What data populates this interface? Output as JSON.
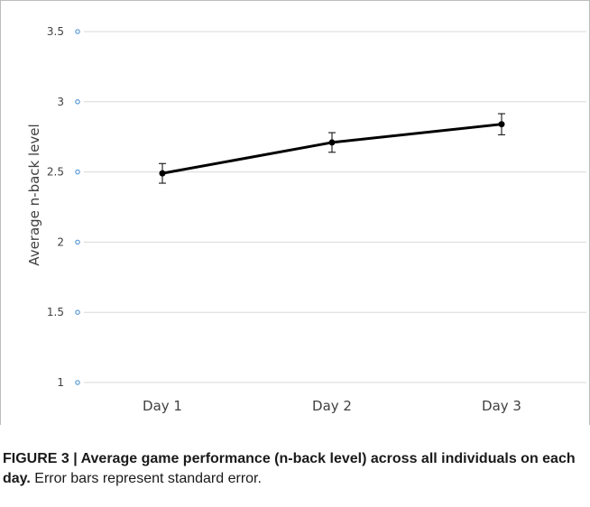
{
  "chart_data": {
    "type": "line",
    "categories": [
      "Day 1",
      "Day 2",
      "Day 3"
    ],
    "series": [
      {
        "values": [
          2.49,
          2.71,
          2.84
        ],
        "error": [
          0.07,
          0.07,
          0.075
        ]
      }
    ],
    "ylabel": "Average n-back level",
    "xlabel": "",
    "ylim": [
      1,
      3.5
    ],
    "yticks": [
      "1",
      "1.5",
      "2",
      "2.5",
      "3",
      "3.5"
    ],
    "grid": true,
    "colors": {
      "line": "#000000",
      "grid": "#d9d9d9",
      "tick_marker": "#5b9bd5",
      "text": "#404040"
    }
  },
  "caption": {
    "label": "FIGURE 3 | Average game performance (n-back level) across all individuals on each day.",
    "text": "Error bars represent standard error."
  }
}
